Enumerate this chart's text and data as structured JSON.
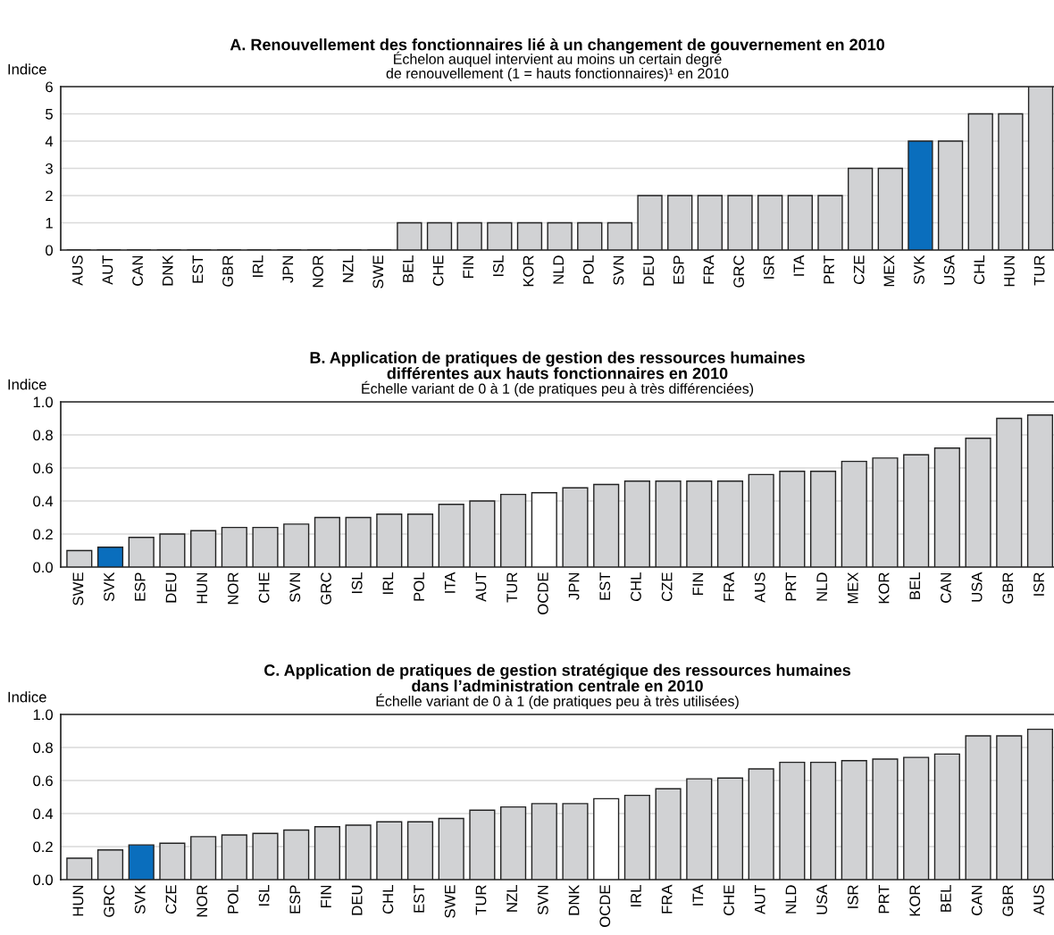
{
  "chart_data": [
    {
      "type": "bar",
      "title": "A. Renouvellement des fonctionnaires lié à un changement de gouvernement en 2010",
      "subtitle": "Échelon auquel intervient au moins un certain degré\nde renouvellement (1 = hauts fonctionnaires)¹ en 2010",
      "ylabel": "Indice",
      "categories": [
        "AUS",
        "AUT",
        "CAN",
        "DNK",
        "EST",
        "GBR",
        "IRL",
        "JPN",
        "NOR",
        "NZL",
        "SWE",
        "BEL",
        "CHE",
        "FIN",
        "ISL",
        "KOR",
        "NLD",
        "POL",
        "SVN",
        "DEU",
        "ESP",
        "FRA",
        "GRC",
        "ISR",
        "ITA",
        "PRT",
        "CZE",
        "MEX",
        "SVK",
        "USA",
        "CHL",
        "HUN",
        "TUR"
      ],
      "values": [
        0,
        0,
        0,
        0,
        0,
        0,
        0,
        0,
        0,
        0,
        0,
        1,
        1,
        1,
        1,
        1,
        1,
        1,
        1,
        2,
        2,
        2,
        2,
        2,
        2,
        2,
        3,
        3,
        4,
        4,
        5,
        5,
        6
      ],
      "colors": [
        "#d1d2d4",
        "#d1d2d4",
        "#d1d2d4",
        "#d1d2d4",
        "#d1d2d4",
        "#d1d2d4",
        "#d1d2d4",
        "#d1d2d4",
        "#d1d2d4",
        "#d1d2d4",
        "#d1d2d4",
        "#d1d2d4",
        "#d1d2d4",
        "#d1d2d4",
        "#d1d2d4",
        "#d1d2d4",
        "#d1d2d4",
        "#d1d2d4",
        "#d1d2d4",
        "#d1d2d4",
        "#d1d2d4",
        "#d1d2d4",
        "#d1d2d4",
        "#d1d2d4",
        "#d1d2d4",
        "#d1d2d4",
        "#d1d2d4",
        "#d1d2d4",
        "#0a6ebd",
        "#d1d2d4",
        "#d1d2d4",
        "#d1d2d4",
        "#d1d2d4"
      ],
      "ylim": [
        0,
        6
      ],
      "yticks": [
        0,
        1,
        2,
        3,
        4,
        5,
        6
      ],
      "grid": "y"
    },
    {
      "type": "bar",
      "title": "B. Application de pratiques de gestion des ressources humaines\ndifférentes aux hauts fonctionnaires en 2010",
      "subtitle": "Échelle variant de 0 à 1 (de pratiques peu à très différenciées)",
      "ylabel": "Indice",
      "categories": [
        "SWE",
        "SVK",
        "ESP",
        "DEU",
        "HUN",
        "NOR",
        "CHE",
        "SVN",
        "GRC",
        "ISL",
        "IRL",
        "POL",
        "ITA",
        "AUT",
        "TUR",
        "OCDE",
        "JPN",
        "EST",
        "CHL",
        "CZE",
        "FIN",
        "FRA",
        "AUS",
        "PRT",
        "NLD",
        "MEX",
        "KOR",
        "BEL",
        "CAN",
        "USA",
        "GBR",
        "ISR"
      ],
      "values": [
        0.1,
        0.12,
        0.18,
        0.2,
        0.22,
        0.24,
        0.24,
        0.26,
        0.3,
        0.3,
        0.32,
        0.32,
        0.38,
        0.4,
        0.44,
        0.45,
        0.48,
        0.5,
        0.52,
        0.52,
        0.52,
        0.52,
        0.56,
        0.58,
        0.58,
        0.64,
        0.66,
        0.68,
        0.72,
        0.78,
        0.9,
        0.92
      ],
      "colors": [
        "#d1d2d4",
        "#0a6ebd",
        "#d1d2d4",
        "#d1d2d4",
        "#d1d2d4",
        "#d1d2d4",
        "#d1d2d4",
        "#d1d2d4",
        "#d1d2d4",
        "#d1d2d4",
        "#d1d2d4",
        "#d1d2d4",
        "#d1d2d4",
        "#d1d2d4",
        "#d1d2d4",
        "#ffffff",
        "#d1d2d4",
        "#d1d2d4",
        "#d1d2d4",
        "#d1d2d4",
        "#d1d2d4",
        "#d1d2d4",
        "#d1d2d4",
        "#d1d2d4",
        "#d1d2d4",
        "#d1d2d4",
        "#d1d2d4",
        "#d1d2d4",
        "#d1d2d4",
        "#d1d2d4",
        "#d1d2d4",
        "#d1d2d4"
      ],
      "ylim": [
        0,
        1
      ],
      "yticks": [
        {
          "value": 0,
          "label": "0.0"
        },
        {
          "value": 0.2,
          "label": "0.2"
        },
        {
          "value": 0.4,
          "label": "0.4"
        },
        {
          "value": 0.6,
          "label": "0.6"
        },
        {
          "value": 0.8,
          "label": "0.8"
        },
        {
          "value": 1,
          "label": "1.0"
        }
      ],
      "grid": "y"
    },
    {
      "type": "bar",
      "title": "C. Application de pratiques de gestion stratégique des ressources humaines\ndans l’administration centrale en 2010",
      "subtitle": "Échelle variant de 0 à 1 (de pratiques peu à très utilisées)",
      "ylabel": "Indice",
      "categories": [
        "HUN",
        "GRC",
        "SVK",
        "CZE",
        "NOR",
        "POL",
        "ISL",
        "ESP",
        "FIN",
        "DEU",
        "CHL",
        "EST",
        "SWE",
        "TUR",
        "NZL",
        "SVN",
        "DNK",
        "OCDE",
        "IRL",
        "FRA",
        "ITA",
        "CHE",
        "AUT",
        "NLD",
        "USA",
        "ISR",
        "PRT",
        "KOR",
        "BEL",
        "CAN",
        "GBR",
        "AUS"
      ],
      "values": [
        0.13,
        0.18,
        0.21,
        0.22,
        0.26,
        0.27,
        0.28,
        0.3,
        0.32,
        0.33,
        0.35,
        0.35,
        0.37,
        0.42,
        0.44,
        0.46,
        0.46,
        0.49,
        0.51,
        0.55,
        0.61,
        0.615,
        0.67,
        0.71,
        0.71,
        0.72,
        0.73,
        0.74,
        0.76,
        0.87,
        0.87,
        0.91
      ],
      "colors": [
        "#d1d2d4",
        "#d1d2d4",
        "#0a6ebd",
        "#d1d2d4",
        "#d1d2d4",
        "#d1d2d4",
        "#d1d2d4",
        "#d1d2d4",
        "#d1d2d4",
        "#d1d2d4",
        "#d1d2d4",
        "#d1d2d4",
        "#d1d2d4",
        "#d1d2d4",
        "#d1d2d4",
        "#d1d2d4",
        "#d1d2d4",
        "#ffffff",
        "#d1d2d4",
        "#d1d2d4",
        "#d1d2d4",
        "#d1d2d4",
        "#d1d2d4",
        "#d1d2d4",
        "#d1d2d4",
        "#d1d2d4",
        "#d1d2d4",
        "#d1d2d4",
        "#d1d2d4",
        "#d1d2d4",
        "#d1d2d4",
        "#d1d2d4"
      ],
      "ylim": [
        0,
        1
      ],
      "yticks": [
        {
          "value": 0,
          "label": "0.0"
        },
        {
          "value": 0.2,
          "label": "0.2"
        },
        {
          "value": 0.4,
          "label": "0.4"
        },
        {
          "value": 0.6,
          "label": "0.6"
        },
        {
          "value": 0.8,
          "label": "0.8"
        },
        {
          "value": 1,
          "label": "1.0"
        }
      ],
      "grid": "y"
    }
  ]
}
